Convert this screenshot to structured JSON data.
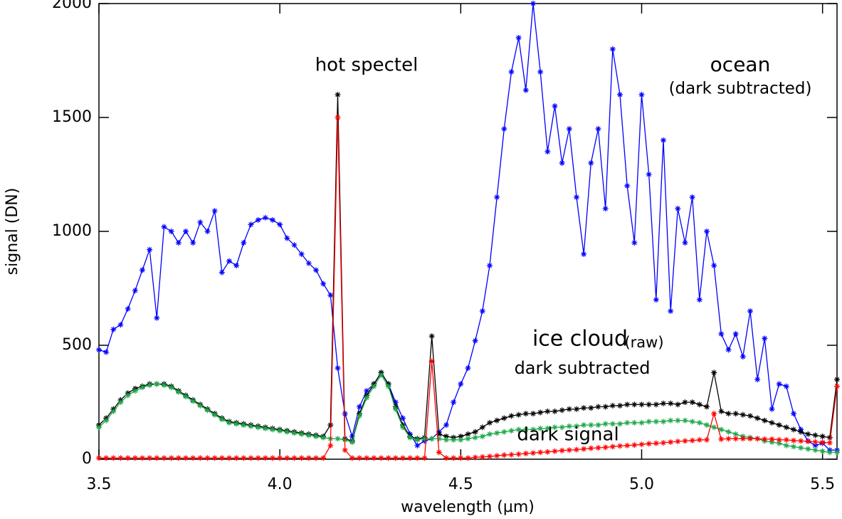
{
  "chart_data": {
    "type": "line",
    "xlabel": "wavelength (µm)",
    "ylabel": "signal (DN)",
    "xlim": [
      3.5,
      5.54
    ],
    "ylim": [
      0,
      2000
    ],
    "xticks": [
      {
        "value": 3.5,
        "label": "3.5"
      },
      {
        "value": 4.0,
        "label": "4.0"
      },
      {
        "value": 4.5,
        "label": "4.5"
      },
      {
        "value": 5.0,
        "label": "5.0"
      },
      {
        "value": 5.5,
        "label": "5.5"
      }
    ],
    "yticks": [
      0,
      500,
      1000,
      1500,
      2000
    ],
    "grid": false,
    "x": [
      3.5,
      3.52,
      3.54,
      3.56,
      3.58,
      3.6,
      3.62,
      3.64,
      3.66,
      3.68,
      3.7,
      3.72,
      3.74,
      3.76,
      3.78,
      3.8,
      3.82,
      3.84,
      3.86,
      3.88,
      3.9,
      3.92,
      3.94,
      3.96,
      3.98,
      4.0,
      4.02,
      4.04,
      4.06,
      4.08,
      4.1,
      4.12,
      4.14,
      4.16,
      4.18,
      4.2,
      4.22,
      4.24,
      4.26,
      4.28,
      4.3,
      4.32,
      4.34,
      4.36,
      4.38,
      4.4,
      4.42,
      4.44,
      4.46,
      4.48,
      4.5,
      4.52,
      4.54,
      4.56,
      4.58,
      4.6,
      4.62,
      4.64,
      4.66,
      4.68,
      4.7,
      4.72,
      4.74,
      4.76,
      4.78,
      4.8,
      4.82,
      4.84,
      4.86,
      4.88,
      4.9,
      4.92,
      4.94,
      4.96,
      4.98,
      5.0,
      5.02,
      5.04,
      5.06,
      5.08,
      5.1,
      5.12,
      5.14,
      5.16,
      5.18,
      5.2,
      5.22,
      5.24,
      5.26,
      5.28,
      5.3,
      5.32,
      5.34,
      5.36,
      5.38,
      5.4,
      5.42,
      5.44,
      5.46,
      5.48,
      5.5,
      5.52,
      5.54
    ],
    "series": [
      {
        "color": "#0000ff",
        "values": [
          480,
          470,
          570,
          590,
          660,
          740,
          830,
          920,
          620,
          1020,
          1000,
          950,
          1000,
          950,
          1040,
          1000,
          1090,
          820,
          870,
          850,
          950,
          1030,
          1050,
          1060,
          1050,
          1030,
          970,
          940,
          900,
          860,
          830,
          770,
          720,
          400,
          200,
          100,
          230,
          300,
          330,
          380,
          330,
          250,
          180,
          110,
          60,
          80,
          90,
          120,
          150,
          250,
          330,
          400,
          520,
          650,
          850,
          1150,
          1450,
          1700,
          1850,
          1620,
          2000,
          1700,
          1350,
          1550,
          1300,
          1450,
          1150,
          900,
          1300,
          1450,
          1100,
          1800,
          1600,
          1200,
          950,
          1600,
          1250,
          700,
          1400,
          650,
          1100,
          950,
          1150,
          700,
          1000,
          850,
          550,
          480,
          550,
          450,
          650,
          350,
          530,
          220,
          330,
          320,
          200,
          130,
          80,
          60,
          70,
          40,
          40
        ]
      },
      {
        "color": "#000000",
        "values": [
          150,
          180,
          220,
          260,
          290,
          310,
          320,
          330,
          330,
          330,
          320,
          300,
          280,
          260,
          240,
          220,
          200,
          180,
          165,
          160,
          155,
          150,
          145,
          140,
          135,
          130,
          125,
          120,
          115,
          110,
          105,
          100,
          150,
          1600,
          90,
          80,
          200,
          280,
          330,
          380,
          330,
          230,
          150,
          100,
          90,
          95,
          540,
          110,
          100,
          95,
          100,
          110,
          120,
          140,
          160,
          170,
          180,
          190,
          195,
          200,
          200,
          205,
          210,
          210,
          215,
          220,
          220,
          225,
          225,
          230,
          230,
          235,
          235,
          240,
          240,
          240,
          240,
          240,
          245,
          245,
          240,
          250,
          250,
          240,
          230,
          380,
          210,
          200,
          200,
          195,
          190,
          180,
          170,
          160,
          150,
          140,
          130,
          120,
          110,
          105,
          100,
          95,
          350
        ]
      },
      {
        "color": "#1ea84a",
        "values": [
          140,
          170,
          210,
          250,
          280,
          300,
          315,
          325,
          330,
          325,
          315,
          295,
          275,
          255,
          235,
          215,
          195,
          175,
          160,
          155,
          150,
          145,
          140,
          135,
          130,
          125,
          120,
          115,
          110,
          105,
          100,
          95,
          90,
          90,
          85,
          75,
          190,
          270,
          320,
          370,
          320,
          220,
          140,
          95,
          85,
          90,
          90,
          90,
          85,
          85,
          85,
          90,
          95,
          100,
          110,
          115,
          120,
          125,
          130,
          130,
          130,
          135,
          135,
          140,
          140,
          145,
          145,
          150,
          150,
          150,
          155,
          155,
          155,
          160,
          160,
          160,
          165,
          165,
          165,
          170,
          170,
          170,
          165,
          160,
          150,
          140,
          130,
          120,
          110,
          100,
          95,
          90,
          80,
          75,
          70,
          60,
          55,
          50,
          45,
          40,
          35,
          30,
          30
        ]
      },
      {
        "color": "#ff0000",
        "values": [
          5,
          5,
          5,
          5,
          5,
          5,
          5,
          5,
          5,
          5,
          5,
          5,
          5,
          5,
          5,
          5,
          5,
          5,
          5,
          5,
          5,
          5,
          5,
          5,
          5,
          5,
          5,
          5,
          5,
          5,
          5,
          5,
          60,
          1500,
          40,
          5,
          5,
          5,
          5,
          5,
          5,
          5,
          5,
          5,
          5,
          5,
          430,
          30,
          5,
          5,
          5,
          5,
          8,
          10,
          12,
          15,
          18,
          20,
          22,
          25,
          27,
          30,
          32,
          35,
          38,
          40,
          42,
          45,
          48,
          50,
          52,
          55,
          58,
          60,
          62,
          65,
          68,
          70,
          72,
          75,
          78,
          80,
          82,
          85,
          85,
          200,
          88,
          90,
          90,
          90,
          90,
          90,
          88,
          88,
          85,
          85,
          82,
          80,
          78,
          76,
          74,
          72,
          320
        ]
      }
    ],
    "annotations": [
      {
        "text": "hot spectel",
        "color": "#ff0000"
      },
      {
        "text": "ocean",
        "color": "#0000ff"
      },
      {
        "text": "(dark subtracted)",
        "color": "#0000ff"
      },
      {
        "text": "ice cloud",
        "color": "#000000"
      },
      {
        "text": "(raw)",
        "color": "#000000"
      },
      {
        "text": "dark subtracted",
        "color": "#1ea84a"
      },
      {
        "text": "dark signal",
        "color": "#ff0000"
      }
    ]
  }
}
